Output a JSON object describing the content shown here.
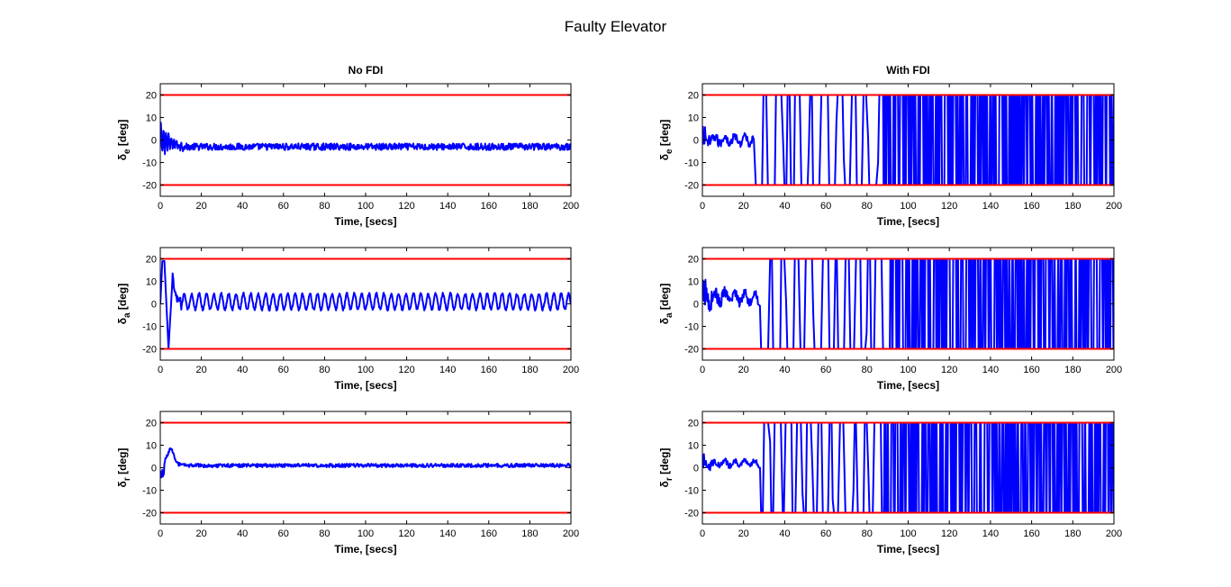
{
  "figure": {
    "title": "Faulty Elevator"
  },
  "colors": {
    "signal": "#0000ff",
    "limit": "#ff0000",
    "axes": "#000000",
    "background": "#ffffff"
  },
  "chart_data": [
    {
      "type": "line",
      "column_title": "No FDI",
      "ylabel_main": "δ",
      "ylabel_sub": "e",
      "ylabel_unit": "[deg]",
      "xlabel": "Time, [secs]",
      "xlim": [
        0,
        200
      ],
      "ylim": [
        -25,
        25
      ],
      "xticks": [
        0,
        20,
        40,
        60,
        80,
        100,
        120,
        140,
        160,
        180,
        200
      ],
      "yticks": [
        -20,
        -10,
        0,
        10,
        20
      ],
      "limits": [
        20,
        -20
      ],
      "grid": false,
      "series": [
        {
          "behavior": "transient_then_noise",
          "settle": -3,
          "noise": 1.5,
          "transient_amp": 7,
          "transient_end": 12
        }
      ]
    },
    {
      "type": "line",
      "column_title": "With FDI",
      "ylabel_main": "δ",
      "ylabel_sub": "e",
      "ylabel_unit": "[deg]",
      "xlabel": "Time, [secs]",
      "xlim": [
        0,
        200
      ],
      "ylim": [
        -25,
        25
      ],
      "xticks": [
        0,
        20,
        40,
        60,
        80,
        100,
        120,
        140,
        160,
        180,
        200
      ],
      "yticks": [
        -20,
        -10,
        0,
        10,
        20
      ],
      "limits": [
        20,
        -20
      ],
      "grid": false,
      "series": [
        {
          "behavior": "saturating_switching",
          "early_end": 25,
          "early_level": 0,
          "early_noise": 3,
          "sat": 20,
          "dense_from": 86
        }
      ]
    },
    {
      "type": "line",
      "column_title": "",
      "ylabel_main": "δ",
      "ylabel_sub": "a",
      "ylabel_unit": "[deg]",
      "xlabel": "Time, [secs]",
      "xlim": [
        0,
        200
      ],
      "ylim": [
        -25,
        25
      ],
      "xticks": [
        0,
        20,
        40,
        60,
        80,
        100,
        120,
        140,
        160,
        180,
        200
      ],
      "yticks": [
        -20,
        -10,
        0,
        10,
        20
      ],
      "limits": [
        20,
        -20
      ],
      "grid": false,
      "series": [
        {
          "behavior": "oscillation",
          "center": 1,
          "amplitude": 3.5,
          "period": 3.6,
          "initial_peak": 19,
          "initial_trough": -20
        }
      ]
    },
    {
      "type": "line",
      "column_title": "",
      "ylabel_main": "δ",
      "ylabel_sub": "a",
      "ylabel_unit": "[deg]",
      "xlabel": "Time, [secs]",
      "xlim": [
        0,
        200
      ],
      "ylim": [
        -25,
        25
      ],
      "xticks": [
        0,
        20,
        40,
        60,
        80,
        100,
        120,
        140,
        160,
        180,
        200
      ],
      "yticks": [
        -20,
        -10,
        0,
        10,
        20
      ],
      "limits": [
        20,
        -20
      ],
      "grid": false,
      "series": [
        {
          "behavior": "saturating_switching",
          "early_end": 27,
          "early_level": 3,
          "early_noise": 4,
          "sat": 20,
          "dense_from": 88
        }
      ]
    },
    {
      "type": "line",
      "column_title": "",
      "ylabel_main": "δ",
      "ylabel_sub": "r",
      "ylabel_unit": "[deg]",
      "xlabel": "Time, [secs]",
      "xlim": [
        0,
        200
      ],
      "ylim": [
        -25,
        25
      ],
      "xticks": [
        0,
        20,
        40,
        60,
        80,
        100,
        120,
        140,
        160,
        180,
        200
      ],
      "yticks": [
        -20,
        -10,
        0,
        10,
        20
      ],
      "limits": [
        20,
        -20
      ],
      "grid": false,
      "series": [
        {
          "behavior": "bump_then_noise",
          "peak": 8,
          "peak_time": 5,
          "settle": 1,
          "noise": 0.8
        }
      ]
    },
    {
      "type": "line",
      "column_title": "",
      "ylabel_main": "δ",
      "ylabel_sub": "r",
      "ylabel_unit": "[deg]",
      "xlabel": "Time, [secs]",
      "xlim": [
        0,
        200
      ],
      "ylim": [
        -25,
        25
      ],
      "xticks": [
        0,
        20,
        40,
        60,
        80,
        100,
        120,
        140,
        160,
        180,
        200
      ],
      "yticks": [
        -20,
        -10,
        0,
        10,
        20
      ],
      "limits": [
        20,
        -20
      ],
      "grid": false,
      "series": [
        {
          "behavior": "saturating_switching",
          "early_end": 28,
          "early_level": 2,
          "early_noise": 2,
          "sat": 20,
          "dense_from": 88
        }
      ]
    }
  ]
}
